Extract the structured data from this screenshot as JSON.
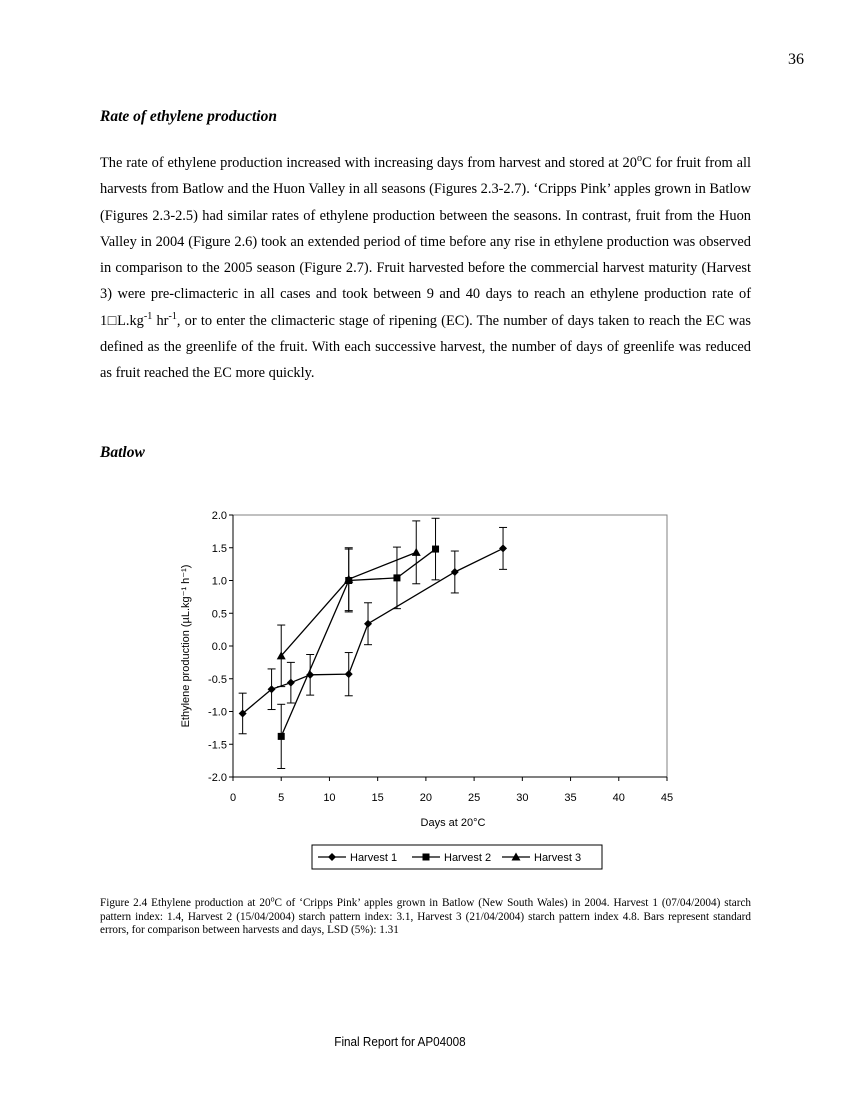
{
  "page_number": "36",
  "section_heading": "Rate of ethylene production",
  "paragraph": [
    {
      "t": "The rate of ethylene production increased with increasing days from harvest and stored at 20"
    },
    {
      "t": "o",
      "sup": true
    },
    {
      "t": "C for fruit from all harvests from Batlow and the Huon Valley in all seasons (Figures 2.3-2.7). ‘Cripps Pink’ apples grown in Batlow (Figures 2.3-2.5) had similar rates of ethylene production between the seasons. In contrast, fruit from the Huon Valley in 2004 (Figure 2.6) took an extended period of time before any rise in ethylene production was observed in comparison to the 2005 season (Figure 2.7). Fruit harvested before the commercial harvest maturity (Harvest 3) were pre-climacteric in all cases and took between 9 and 40 days to reach an ethylene production rate of 1□L.kg"
    },
    {
      "t": "-1",
      "sup": true
    },
    {
      "t": " hr"
    },
    {
      "t": "-1",
      "sup": true
    },
    {
      "t": ", or to enter the climacteric stage of ripening (EC). The number of days taken to reach the EC was defined as the greenlife of the fruit. With each successive harvest, the number of days of greenlife was reduced as fruit reached the EC more quickly."
    }
  ],
  "subheading": "Batlow",
  "caption": [
    {
      "t": "Figure 2.4 Ethylene production at 20"
    },
    {
      "t": "o",
      "sup": true
    },
    {
      "t": "C of ‘Cripps Pink’ apples grown in Batlow (New South Wales) in 2004. Harvest 1 (07/04/2004) starch pattern index: 1.4, Harvest 2 (15/04/2004) starch pattern index: 3.1, Harvest 3 (21/04/2004) starch pattern index 4.8. Bars represent standard errors, for comparison between harvests and days, LSD (5%): 1.31"
    }
  ],
  "footer": "Final Report for AP04008",
  "chart_data": {
    "type": "line",
    "xlabel": "Days at 20°C",
    "ylabel": "Ethylene production (µL.kg⁻¹ h⁻¹)",
    "xlim": [
      0,
      45
    ],
    "ylim": [
      -2.0,
      2.0
    ],
    "xticks": [
      "0",
      "5",
      "10",
      "15",
      "20",
      "25",
      "30",
      "35",
      "40",
      "45"
    ],
    "yticks": [
      "2.0",
      "1.5",
      "1.0",
      "0.5",
      "0.0",
      "-0.5",
      "-1.0",
      "-1.5",
      "-2.0"
    ],
    "grid": false,
    "legend_position": "bottom",
    "series": [
      {
        "name": "Harvest 1",
        "marker": "diamond",
        "x": [
          1,
          4,
          6,
          8,
          12,
          14,
          23,
          28
        ],
        "y": [
          -1.03,
          -0.66,
          -0.56,
          -0.44,
          -0.43,
          0.34,
          1.13,
          1.49
        ],
        "err": [
          0.31,
          0.31,
          0.31,
          0.31,
          0.33,
          0.32,
          0.32,
          0.32
        ]
      },
      {
        "name": "Harvest 2",
        "marker": "square",
        "x": [
          5,
          12,
          17,
          21
        ],
        "y": [
          -1.38,
          1.0,
          1.04,
          1.48
        ],
        "err": [
          0.49,
          0.48,
          0.47,
          0.47
        ]
      },
      {
        "name": "Harvest 3",
        "marker": "triangle",
        "x": [
          5,
          12,
          19
        ],
        "y": [
          -0.15,
          1.02,
          1.43
        ],
        "err": [
          0.47,
          0.48,
          0.48
        ]
      }
    ]
  }
}
